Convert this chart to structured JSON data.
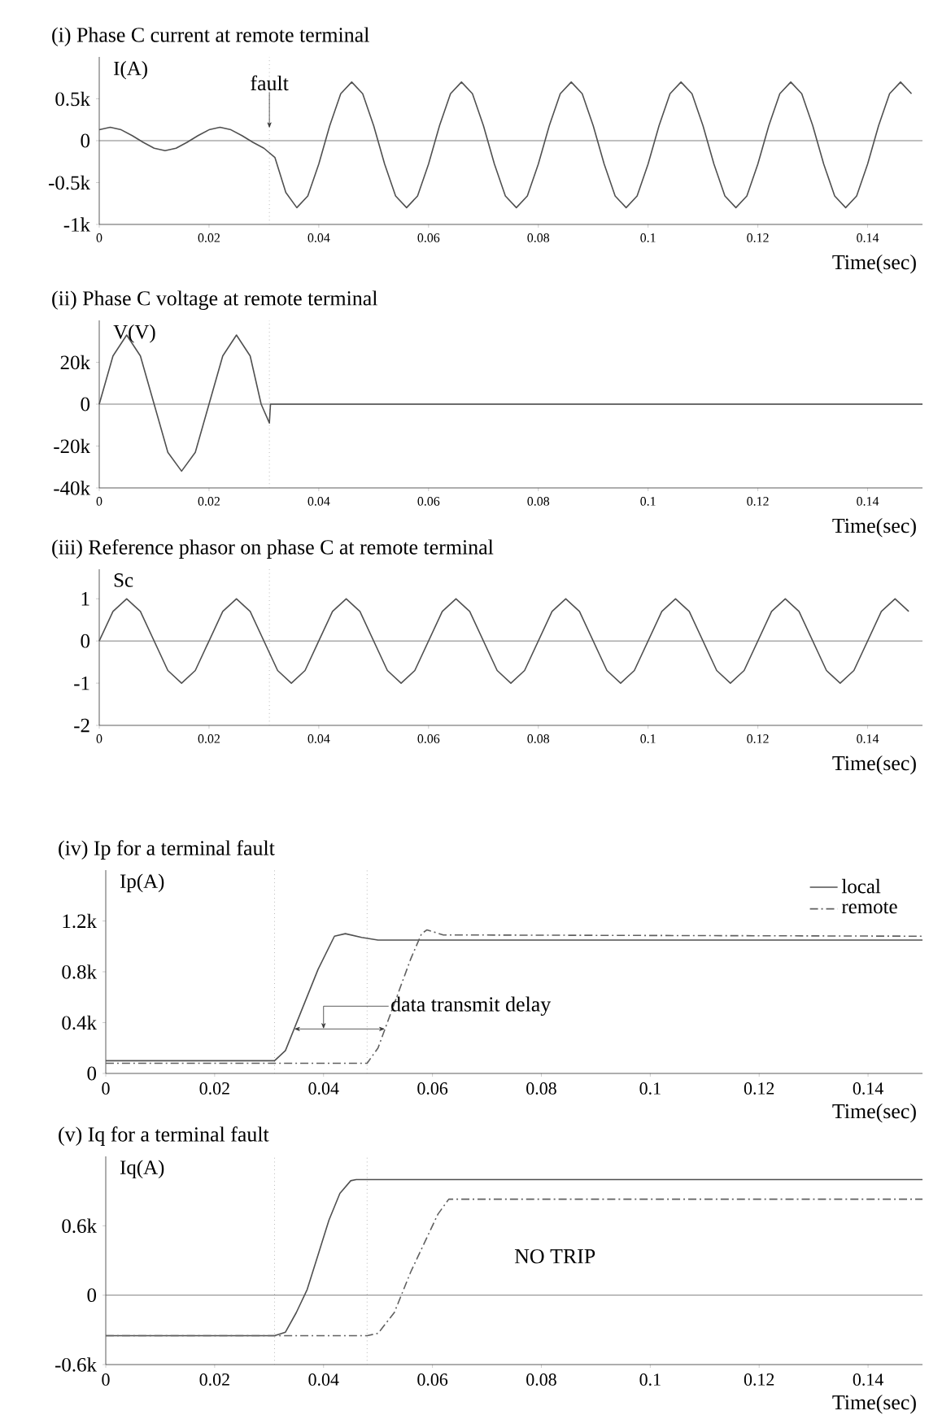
{
  "chart_data": [
    {
      "type": "line",
      "title": "(i) Phase C current at remote terminal",
      "xlabel": "Time(sec)",
      "ylabel": "I(A)",
      "xlim": [
        0,
        0.15
      ],
      "ylim": [
        -1000,
        1000
      ],
      "xticks": [
        0,
        0.02,
        0.04,
        0.06,
        0.08,
        0.1,
        0.12,
        0.14
      ],
      "yticks": [
        {
          "value": -1000,
          "label": "-1k"
        },
        {
          "value": -500,
          "label": "-0.5k"
        },
        0,
        {
          "value": 500,
          "label": "0.5k"
        }
      ],
      "ref_lines": [
        {
          "axis": "y",
          "value": 0,
          "color": "#606060"
        },
        {
          "axis": "x",
          "value": 0.031,
          "line_style": "dotted",
          "color": "#909090"
        }
      ],
      "annotations": [
        {
          "text": "fault",
          "x": 0.031,
          "y": 150
        }
      ],
      "series": [
        {
          "color": "#505050",
          "x": [
            0,
            0.002,
            0.004,
            0.006,
            0.008,
            0.01,
            0.012,
            0.014,
            0.016,
            0.018,
            0.02,
            0.022,
            0.024,
            0.026,
            0.028,
            0.03,
            0.032,
            0.034,
            0.036,
            0.038,
            0.04,
            0.042,
            0.044,
            0.046,
            0.048,
            0.05,
            0.052,
            0.054,
            0.056,
            0.058,
            0.06,
            0.062,
            0.064,
            0.066,
            0.068,
            0.07,
            0.072,
            0.074,
            0.076,
            0.078,
            0.08,
            0.082,
            0.084,
            0.086,
            0.088,
            0.09,
            0.092,
            0.094,
            0.096,
            0.098,
            0.1,
            0.102,
            0.104,
            0.106,
            0.108,
            0.11,
            0.112,
            0.114,
            0.116,
            0.118,
            0.12,
            0.122,
            0.124,
            0.126,
            0.128,
            0.13,
            0.132,
            0.134,
            0.136,
            0.138,
            0.14,
            0.142,
            0.144,
            0.146,
            0.148
          ],
          "values": [
            130,
            160,
            130,
            60,
            -20,
            -90,
            -120,
            -90,
            -20,
            60,
            130,
            160,
            130,
            60,
            -20,
            -90,
            -200,
            -620,
            -800,
            -660,
            -280,
            180,
            560,
            700,
            560,
            180,
            -280,
            -660,
            -800,
            -660,
            -280,
            180,
            560,
            700,
            560,
            180,
            -280,
            -660,
            -800,
            -660,
            -280,
            180,
            560,
            700,
            560,
            180,
            -280,
            -660,
            -800,
            -660,
            -280,
            180,
            560,
            700,
            560,
            180,
            -280,
            -660,
            -800,
            -660,
            -280,
            180,
            560,
            700,
            560,
            180,
            -280,
            -660,
            -800,
            -660,
            -280,
            180,
            560,
            700,
            560
          ]
        }
      ]
    },
    {
      "type": "line",
      "title": "(ii) Phase C voltage at remote terminal",
      "xlabel": "Time(sec)",
      "ylabel": "V(V)",
      "xlim": [
        0,
        0.15
      ],
      "ylim": [
        -40000,
        40000
      ],
      "xticks": [
        0,
        0.02,
        0.04,
        0.06,
        0.08,
        0.1,
        0.12,
        0.14
      ],
      "yticks": [
        {
          "value": -40000,
          "label": "-40k"
        },
        {
          "value": -20000,
          "label": "-20k"
        },
        0,
        {
          "value": 20000,
          "label": "20k"
        }
      ],
      "ref_lines": [
        {
          "axis": "y",
          "value": 0,
          "color": "#606060"
        },
        {
          "axis": "x",
          "value": 0.031,
          "line_style": "dotted",
          "color": "#909090"
        }
      ],
      "series": [
        {
          "color": "#505050",
          "x": [
            0,
            0.0025,
            0.005,
            0.0075,
            0.01,
            0.0125,
            0.015,
            0.0175,
            0.02,
            0.0225,
            0.025,
            0.0275,
            0.0295,
            0.031,
            0.0312,
            0.15
          ],
          "values": [
            0,
            23000,
            33000,
            23000,
            0,
            -23000,
            -32000,
            -23000,
            0,
            23000,
            33000,
            23000,
            0,
            -9000,
            0,
            0
          ]
        }
      ]
    },
    {
      "type": "line",
      "title": "(iii) Reference phasor on phase C at remote terminal",
      "xlabel": "Time(sec)",
      "ylabel": "Sc",
      "xlim": [
        0,
        0.15
      ],
      "ylim": [
        -2,
        1.7
      ],
      "xticks": [
        0,
        0.02,
        0.04,
        0.06,
        0.08,
        0.1,
        0.12,
        0.14
      ],
      "yticks": [
        -2,
        -1,
        0,
        1
      ],
      "ref_lines": [
        {
          "axis": "y",
          "value": 0,
          "color": "#606060"
        },
        {
          "axis": "x",
          "value": 0.031,
          "line_style": "dotted",
          "color": "#909090"
        }
      ],
      "series": [
        {
          "color": "#505050",
          "x": [
            0,
            0.0025,
            0.005,
            0.0075,
            0.01,
            0.0125,
            0.015,
            0.0175,
            0.02,
            0.0225,
            0.025,
            0.0275,
            0.03,
            0.0325,
            0.035,
            0.0375,
            0.04,
            0.0425,
            0.045,
            0.0475,
            0.05,
            0.0525,
            0.055,
            0.0575,
            0.06,
            0.0625,
            0.065,
            0.0675,
            0.07,
            0.0725,
            0.075,
            0.0775,
            0.08,
            0.0825,
            0.085,
            0.0875,
            0.09,
            0.0925,
            0.095,
            0.0975,
            0.1,
            0.1025,
            0.105,
            0.1075,
            0.11,
            0.1125,
            0.115,
            0.1175,
            0.12,
            0.1225,
            0.125,
            0.1275,
            0.13,
            0.1325,
            0.135,
            0.1375,
            0.14,
            0.1425,
            0.145,
            0.1475
          ],
          "values": [
            0,
            0.7,
            1,
            0.7,
            0,
            -0.7,
            -1,
            -0.7,
            0,
            0.7,
            1,
            0.7,
            0,
            -0.7,
            -1,
            -0.7,
            0,
            0.7,
            1,
            0.7,
            0,
            -0.7,
            -1,
            -0.7,
            0,
            0.7,
            1,
            0.7,
            0,
            -0.7,
            -1,
            -0.7,
            0,
            0.7,
            1,
            0.7,
            0,
            -0.7,
            -1,
            -0.7,
            0,
            0.7,
            1,
            0.7,
            0,
            -0.7,
            -1,
            -0.7,
            0,
            0.7,
            1,
            0.7,
            0,
            -0.7,
            -1,
            -0.7,
            0,
            0.7,
            1,
            0.7
          ]
        }
      ]
    },
    {
      "type": "line",
      "title": "(iv) Ip  for a terminal fault",
      "xlabel": "Time(sec)",
      "ylabel": "Ip(A)",
      "xlim": [
        0,
        0.15
      ],
      "ylim": [
        0,
        1600
      ],
      "legend": "top right",
      "xticks": [
        0,
        0.02,
        0.04,
        0.06,
        0.08,
        0.1,
        0.12,
        0.14
      ],
      "yticks": [
        0,
        {
          "value": 400,
          "label": "0.4k"
        },
        {
          "value": 800,
          "label": "0.8k"
        },
        {
          "value": 1200,
          "label": "1.2k"
        }
      ],
      "ref_lines": [
        {
          "axis": "x",
          "value": 0.031,
          "line_style": "dotted",
          "color": "#909090"
        },
        {
          "axis": "x",
          "value": 0.048,
          "line_style": "dotted",
          "color": "#909090"
        }
      ],
      "annotations": [
        {
          "text": "data transmit delay",
          "x": 0.04,
          "y": 350
        }
      ],
      "series": [
        {
          "name": "local",
          "color": "#505050",
          "line_style": "solid",
          "x": [
            0,
            0.031,
            0.033,
            0.036,
            0.039,
            0.042,
            0.044,
            0.047,
            0.05,
            0.15
          ],
          "values": [
            100,
            100,
            180,
            500,
            820,
            1080,
            1100,
            1070,
            1050,
            1050
          ]
        },
        {
          "name": "remote",
          "color": "#606060",
          "line_style": "dashed",
          "x": [
            0,
            0.048,
            0.05,
            0.053,
            0.056,
            0.058,
            0.059,
            0.062,
            0.15
          ],
          "values": [
            80,
            80,
            200,
            550,
            900,
            1100,
            1130,
            1090,
            1080
          ]
        }
      ]
    },
    {
      "type": "line",
      "title": "(v) Iq for a terminal fault",
      "xlabel": "Time(sec)",
      "ylabel": "Iq(A)",
      "xlim": [
        0,
        0.15
      ],
      "ylim": [
        -600,
        1200
      ],
      "xticks": [
        0,
        0.02,
        0.04,
        0.06,
        0.08,
        0.1,
        0.12,
        0.14
      ],
      "yticks": [
        {
          "value": -600,
          "label": "-0.6k"
        },
        0,
        {
          "value": 600,
          "label": "0.6k"
        }
      ],
      "ref_lines": [
        {
          "axis": "y",
          "value": 0,
          "color": "#606060"
        },
        {
          "axis": "x",
          "value": 0.031,
          "line_style": "dotted",
          "color": "#909090"
        },
        {
          "axis": "x",
          "value": 0.048,
          "line_style": "dotted",
          "color": "#909090"
        }
      ],
      "annotations": [
        "NO TRIP"
      ],
      "series": [
        {
          "color": "#505050",
          "line_style": "solid",
          "x": [
            0,
            0.031,
            0.033,
            0.035,
            0.037,
            0.039,
            0.041,
            0.043,
            0.045,
            0.046,
            0.15
          ],
          "values": [
            -350,
            -350,
            -320,
            -150,
            50,
            350,
            650,
            880,
            990,
            1000,
            1000
          ]
        },
        {
          "color": "#606060",
          "line_style": "dashed",
          "x": [
            0,
            0.048,
            0.05,
            0.053,
            0.056,
            0.059,
            0.061,
            0.063,
            0.15
          ],
          "values": [
            -350,
            -350,
            -330,
            -150,
            200,
            500,
            700,
            830,
            830
          ]
        }
      ]
    }
  ]
}
